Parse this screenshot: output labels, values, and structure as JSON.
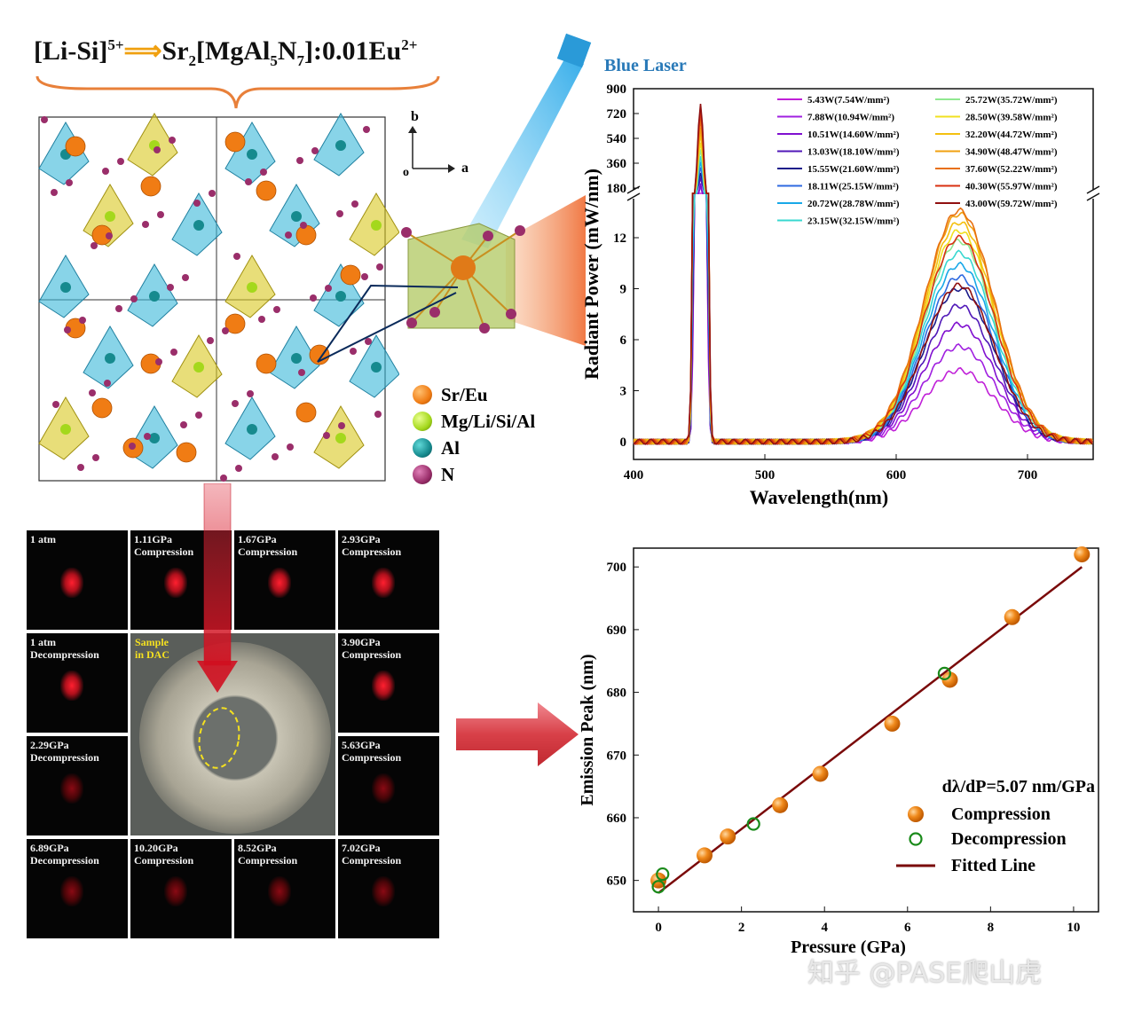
{
  "title": {
    "prefix": "[Li-Si]",
    "prefix_sup": "5+",
    "arrow": "⟹",
    "formula_a": "Sr",
    "sub1": "2",
    "formula_b": "[MgAl",
    "sub2": "5",
    "formula_c": "N",
    "sub3": "7",
    "formula_d": "]:0.01Eu",
    "sup2": "2+"
  },
  "atoms_legend": [
    {
      "label": "Sr/Eu",
      "color": "#f07c14"
    },
    {
      "label": "Mg/Li/Si/Al",
      "color": "#a4d81c"
    },
    {
      "label": "Al",
      "color": "#168a8e"
    },
    {
      "label": "N",
      "color": "#9a2e6a"
    }
  ],
  "axes_icons": {
    "b": "b",
    "a": "a",
    "o": "o"
  },
  "blue_laser_label": "Blue Laser",
  "colors": {
    "accent_orange": "#f07c14",
    "fit_line": "#7a0a0a",
    "laser_blue": "#42b4ec",
    "arrow_red": "#d84048"
  },
  "grid_cells": [
    {
      "line1": "1 atm",
      "line2": "",
      "glow": "bright"
    },
    {
      "line1": "1.11GPa",
      "line2": "Compression",
      "glow": "bright"
    },
    {
      "line1": "1.67GPa",
      "line2": "Compression",
      "glow": "bright"
    },
    {
      "line1": "2.93GPa",
      "line2": "Compression",
      "glow": "bright"
    },
    {
      "line1": "1 atm",
      "line2": "Decompression",
      "glow": "bright"
    },
    {
      "line1": "3.90GPa",
      "line2": "Compression",
      "glow": "bright"
    },
    {
      "line1": "2.29GPa",
      "line2": "Decompression",
      "glow": "dim"
    },
    {
      "line1": "5.63GPa",
      "line2": "Compression",
      "glow": "dim"
    },
    {
      "line1": "6.89GPa",
      "line2": "Decompression",
      "glow": "dim"
    },
    {
      "line1": "10.20GPa",
      "line2": "Compression",
      "glow": "dim"
    },
    {
      "line1": "8.52GPa",
      "line2": "Compression",
      "glow": "dim"
    },
    {
      "line1": "7.02GPa",
      "line2": "Compression",
      "glow": "dim"
    }
  ],
  "sample_label": {
    "line1": "Sample",
    "line2": "in DAC"
  },
  "chart_data": [
    {
      "type": "line",
      "xlabel": "Wavelength(nm)",
      "ylabel": "Radiant Power (mW/nm)",
      "xlim": [
        400,
        750
      ],
      "x_ticks": [
        400,
        500,
        600,
        700
      ],
      "y_ticks_lower": [
        0,
        3,
        6,
        9,
        12
      ],
      "y_ticks_upper": [
        180,
        360,
        540,
        720,
        900
      ],
      "axis_break": true,
      "series": [
        {
          "name": "5.43W(7.54W/mm²)",
          "color": "#c020d8",
          "laser_peak": 165,
          "emission_peak": 4.2
        },
        {
          "name": "7.88W(10.94W/mm²)",
          "color": "#a020e0",
          "laser_peak": 190,
          "emission_peak": 5.6
        },
        {
          "name": "10.51W(14.60W/mm²)",
          "color": "#8010d0",
          "laser_peak": 215,
          "emission_peak": 6.9
        },
        {
          "name": "13.03W(18.10W/mm²)",
          "color": "#5018b8",
          "laser_peak": 250,
          "emission_peak": 8.0
        },
        {
          "name": "15.55W(21.60W/mm²)",
          "color": "#1a1a8a",
          "laser_peak": 290,
          "emission_peak": 9.0
        },
        {
          "name": "18.11W(25.15W/mm²)",
          "color": "#2f6ae0",
          "laser_peak": 330,
          "emission_peak": 9.7
        },
        {
          "name": "20.72W(28.78W/mm²)",
          "color": "#18a8e8",
          "laser_peak": 370,
          "emission_peak": 10.4
        },
        {
          "name": "23.15W(32.15W/mm²)",
          "color": "#38d8d0",
          "laser_peak": 410,
          "emission_peak": 11.1
        },
        {
          "name": "25.72W(35.72W/mm²)",
          "color": "#90e890",
          "laser_peak": 460,
          "emission_peak": 11.8
        },
        {
          "name": "28.50W(39.58W/mm²)",
          "color": "#f0e020",
          "laser_peak": 510,
          "emission_peak": 12.4
        },
        {
          "name": "32.20W(44.72W/mm²)",
          "color": "#f4c010",
          "laser_peak": 570,
          "emission_peak": 12.9
        },
        {
          "name": "34.90W(48.47W/mm²)",
          "color": "#f0a010",
          "laser_peak": 620,
          "emission_peak": 13.4
        },
        {
          "name": "37.60W(52.22W/mm²)",
          "color": "#e87010",
          "laser_peak": 680,
          "emission_peak": 13.6
        },
        {
          "name": "40.30W(55.97W/mm²)",
          "color": "#d83010",
          "laser_peak": 740,
          "emission_peak": 12.0
        },
        {
          "name": "43.00W(59.72W/mm²)",
          "color": "#901010",
          "laser_peak": 790,
          "emission_peak": 9.2
        }
      ]
    },
    {
      "type": "scatter",
      "xlabel": "Pressure (GPa)",
      "ylabel": "Emission Peak (nm)",
      "xlim": [
        -0.6,
        10.6
      ],
      "ylim": [
        645,
        703
      ],
      "x_ticks": [
        0,
        2,
        4,
        6,
        8,
        10
      ],
      "y_ticks": [
        650,
        660,
        670,
        680,
        690,
        700
      ],
      "annotation": "dλ/dP=5.07 nm/GPa",
      "series": [
        {
          "name": "Compression",
          "marker": "filled",
          "points": [
            [
              0,
              650
            ],
            [
              1.11,
              654
            ],
            [
              1.67,
              657
            ],
            [
              2.93,
              662
            ],
            [
              3.9,
              667
            ],
            [
              5.63,
              675
            ],
            [
              7.02,
              682
            ],
            [
              8.52,
              692
            ],
            [
              10.2,
              702
            ]
          ]
        },
        {
          "name": "Decompression",
          "marker": "open",
          "points": [
            [
              0,
              649
            ],
            [
              0.1,
              651
            ],
            [
              2.29,
              659
            ],
            [
              6.89,
              683
            ]
          ]
        },
        {
          "name": "Fitted Line",
          "marker": "line",
          "points": [
            [
              0,
              648
            ],
            [
              10.2,
              700
            ]
          ]
        }
      ]
    }
  ],
  "watermark": "知乎 @PASE爬山虎"
}
